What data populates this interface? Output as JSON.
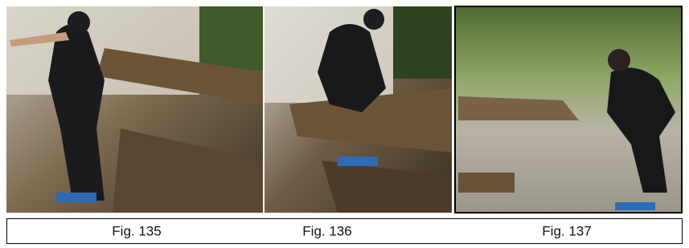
{
  "figures": [
    {
      "caption": "Fig. 135"
    },
    {
      "caption": "Fig. 136"
    },
    {
      "caption": "Fig. 137"
    }
  ]
}
